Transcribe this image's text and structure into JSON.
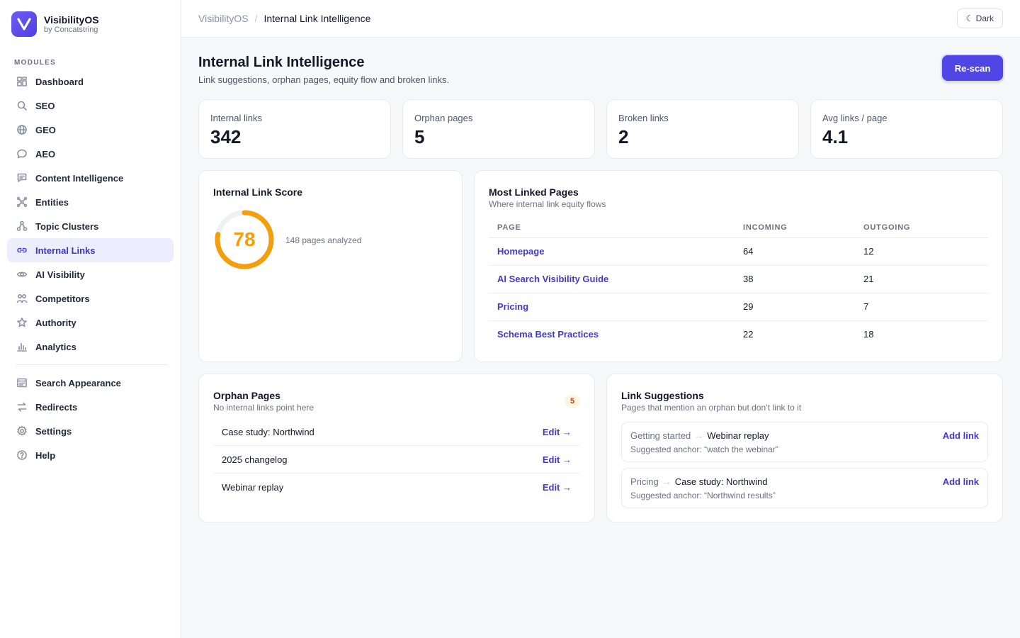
{
  "brand": {
    "name": "VisibilityOS",
    "sub": "by Concatstring"
  },
  "sidebar": {
    "section_label": "MODULES",
    "items": [
      {
        "label": "Dashboard",
        "icon": "dashboard-icon"
      },
      {
        "label": "SEO",
        "icon": "search-icon"
      },
      {
        "label": "GEO",
        "icon": "globe-icon"
      },
      {
        "label": "AEO",
        "icon": "chat-bubble-icon"
      },
      {
        "label": "Content Intelligence",
        "icon": "message-square-icon"
      },
      {
        "label": "Entities",
        "icon": "entities-icon"
      },
      {
        "label": "Topic Clusters",
        "icon": "cluster-icon"
      },
      {
        "label": "Internal Links",
        "icon": "link-icon",
        "active": true
      },
      {
        "label": "AI Visibility",
        "icon": "eye-icon"
      },
      {
        "label": "Competitors",
        "icon": "users-icon"
      },
      {
        "label": "Authority",
        "icon": "star-icon"
      },
      {
        "label": "Analytics",
        "icon": "bar-chart-icon"
      }
    ],
    "bottom_items": [
      {
        "label": "Search Appearance",
        "icon": "layout-icon"
      },
      {
        "label": "Redirects",
        "icon": "redirect-icon"
      },
      {
        "label": "Settings",
        "icon": "gear-icon"
      },
      {
        "label": "Help",
        "icon": "help-circle-icon"
      }
    ]
  },
  "topbar": {
    "breadcrumb_root": "VisibilityOS",
    "breadcrumb_sep": "/",
    "breadcrumb_current": "Internal Link Intelligence",
    "theme_button": "☾ Dark"
  },
  "header": {
    "title": "Internal Link Intelligence",
    "subtitle": "Link suggestions, orphan pages, equity flow and broken links.",
    "rescan_label": "Re-scan",
    "accent": "#4f46e5"
  },
  "stats": [
    {
      "label": "Internal links",
      "value": "342"
    },
    {
      "label": "Orphan pages",
      "value": "5"
    },
    {
      "label": "Broken links",
      "value": "2"
    },
    {
      "label": "Avg links / page",
      "value": "4.1"
    }
  ],
  "score": {
    "title": "Internal Link Score",
    "value": "78",
    "percent": 78,
    "note": "148 pages analyzed",
    "color": "#f59e0b"
  },
  "most_linked": {
    "title": "Most Linked Pages",
    "subtitle": "Where internal link equity flows",
    "columns": [
      "PAGE",
      "INCOMING",
      "OUTGOING"
    ],
    "rows": [
      {
        "page": "Homepage",
        "incoming": "64",
        "outgoing": "12"
      },
      {
        "page": "AI Search Visibility Guide",
        "incoming": "38",
        "outgoing": "21"
      },
      {
        "page": "Pricing",
        "incoming": "29",
        "outgoing": "7"
      },
      {
        "page": "Schema Best Practices",
        "incoming": "22",
        "outgoing": "18"
      }
    ]
  },
  "orphans": {
    "title": "Orphan Pages",
    "subtitle": "No internal links point here",
    "count": "5",
    "edit_label": "Edit →",
    "items": [
      "Case study: Northwind",
      "2025 changelog",
      "Webinar replay"
    ]
  },
  "suggestions": {
    "title": "Link Suggestions",
    "subtitle": "Pages that mention an orphan but don’t link to it",
    "action_label": "Add link",
    "items": [
      {
        "from": "Getting started",
        "to": "Webinar replay",
        "anchor": "Suggested anchor: “watch the webinar”"
      },
      {
        "from": "Pricing",
        "to": "Case study: Northwind",
        "anchor": "Suggested anchor: “Northwind results”"
      }
    ]
  }
}
